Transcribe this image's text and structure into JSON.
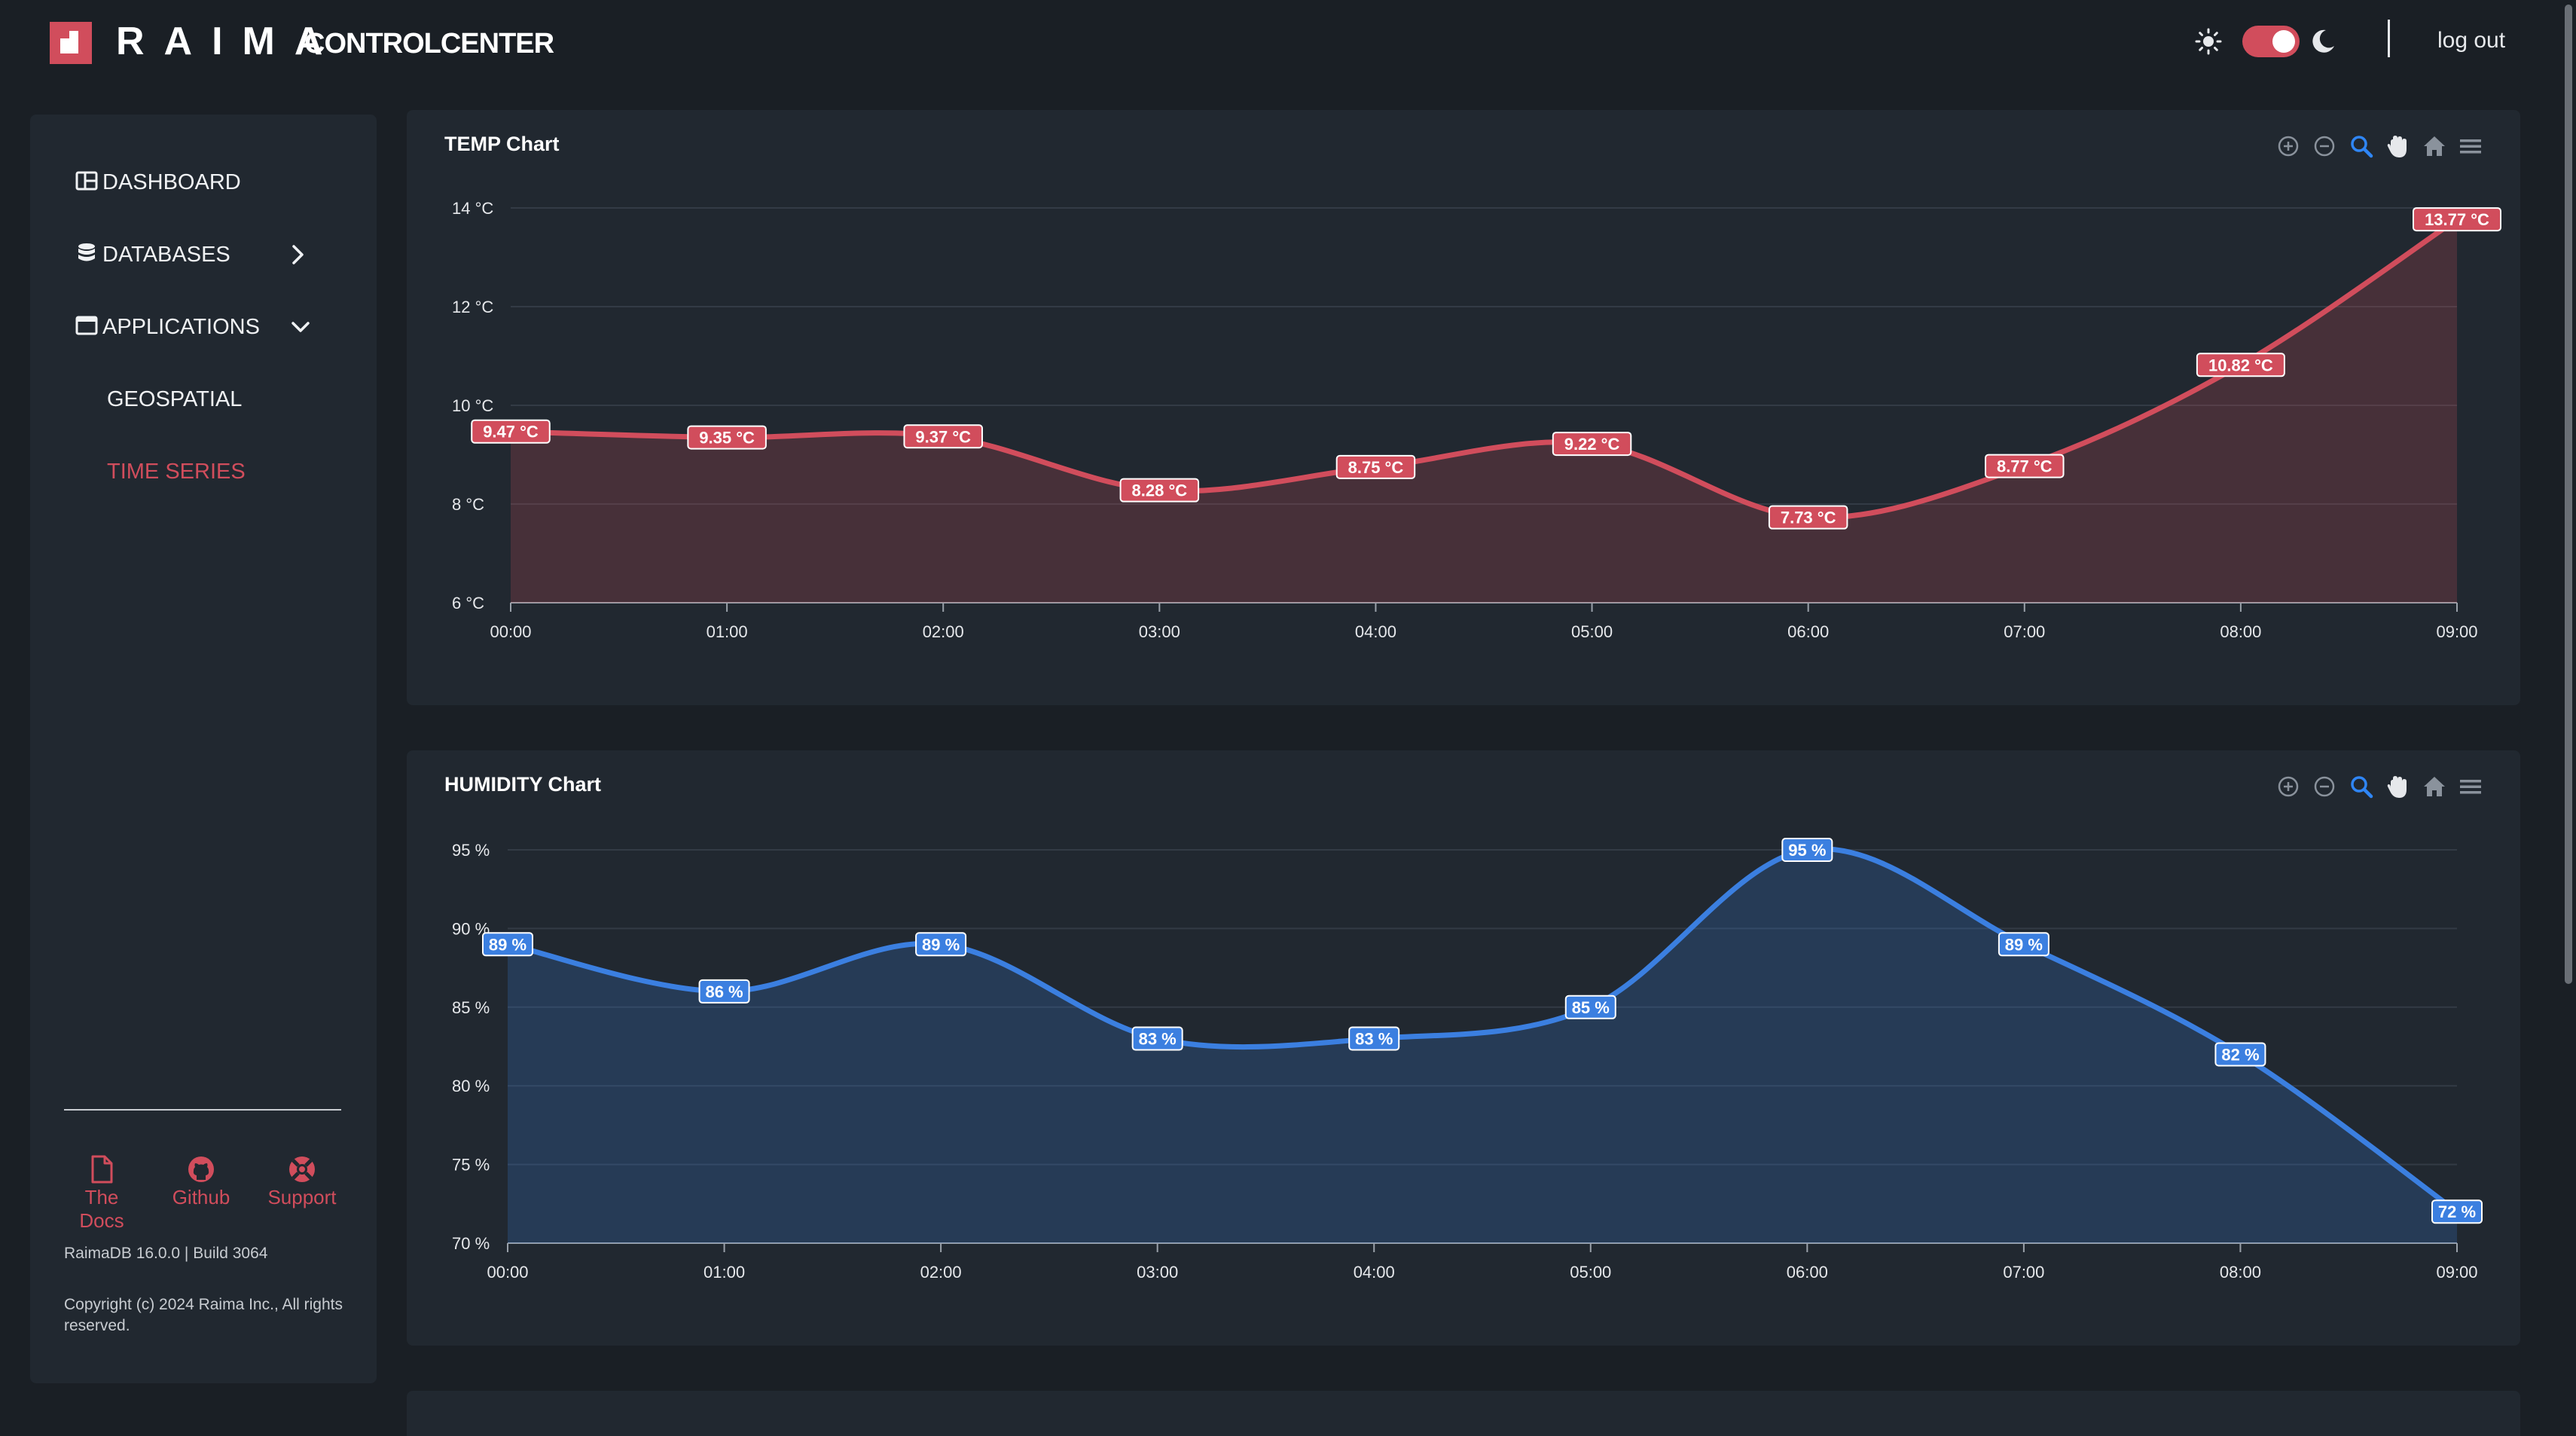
{
  "header": {
    "brand": "RAIMA",
    "brand_sub": "CONTROLCENTER",
    "logout_label": "log out",
    "theme": "dark"
  },
  "colors": {
    "accent": "#d14d5c",
    "temp_series": "#d14d5c",
    "humidity_series": "#3b7fe0",
    "background": "#1a1f25",
    "panel": "#212830"
  },
  "sidebar": {
    "items": [
      {
        "label": "DASHBOARD",
        "icon": "dashboard-icon"
      },
      {
        "label": "DATABASES",
        "icon": "database-icon",
        "chevron": "chevron-right-icon"
      },
      {
        "label": "APPLICATIONS",
        "icon": "window-icon",
        "chevron": "chevron-down-icon"
      }
    ],
    "subitems": [
      {
        "label": "GEOSPATIAL",
        "active": false
      },
      {
        "label": "TIME SERIES",
        "active": true
      }
    ],
    "footer_links": [
      {
        "label": "The Docs",
        "icon": "document-icon"
      },
      {
        "label": "Github",
        "icon": "github-icon"
      },
      {
        "label": "Support",
        "icon": "lifebuoy-icon"
      }
    ],
    "version": "RaimaDB 16.0.0 | Build 3064",
    "copyright": "Copyright (c) 2024 Raima Inc., All rights reserved."
  },
  "chart_data": [
    {
      "type": "area",
      "title": "TEMP Chart",
      "x": [
        "00:00",
        "01:00",
        "02:00",
        "03:00",
        "04:00",
        "05:00",
        "06:00",
        "07:00",
        "08:00",
        "09:00"
      ],
      "values": [
        9.47,
        9.35,
        9.37,
        8.28,
        8.75,
        9.22,
        7.73,
        8.77,
        10.82,
        13.77
      ],
      "data_labels": [
        "9.47 °C",
        "9.35 °C",
        "9.37 °C",
        "8.28 °C",
        "8.75 °C",
        "9.22 °C",
        "7.73 °C",
        "8.77 °C",
        "10.82 °C",
        "13.77 °C"
      ],
      "yticks": [
        "6 °C",
        "8 °C",
        "10 °C",
        "12 °C",
        "14 °C"
      ],
      "ytick_values": [
        6,
        8,
        10,
        12,
        14
      ],
      "ylim": [
        6,
        14
      ],
      "grid": true,
      "color": "#d14d5c"
    },
    {
      "type": "area",
      "title": "HUMIDITY Chart",
      "x": [
        "00:00",
        "01:00",
        "02:00",
        "03:00",
        "04:00",
        "05:00",
        "06:00",
        "07:00",
        "08:00",
        "09:00"
      ],
      "values": [
        89,
        86,
        89,
        83,
        83,
        85,
        95,
        89,
        82,
        72
      ],
      "data_labels": [
        "89 %",
        "86 %",
        "89 %",
        "83 %",
        "83 %",
        "85 %",
        "95 %",
        "89 %",
        "82 %",
        "72 %"
      ],
      "yticks": [
        "70 %",
        "75 %",
        "80 %",
        "85 %",
        "90 %",
        "95 %"
      ],
      "ytick_values": [
        70,
        75,
        80,
        85,
        90,
        95
      ],
      "ylim": [
        70,
        95
      ],
      "grid": true,
      "color": "#3b7fe0"
    }
  ],
  "toolbar_icons": [
    "zoom-in-icon",
    "zoom-out-icon",
    "zoom-select-icon",
    "pan-hand-icon",
    "home-reset-icon",
    "menu-icon"
  ]
}
